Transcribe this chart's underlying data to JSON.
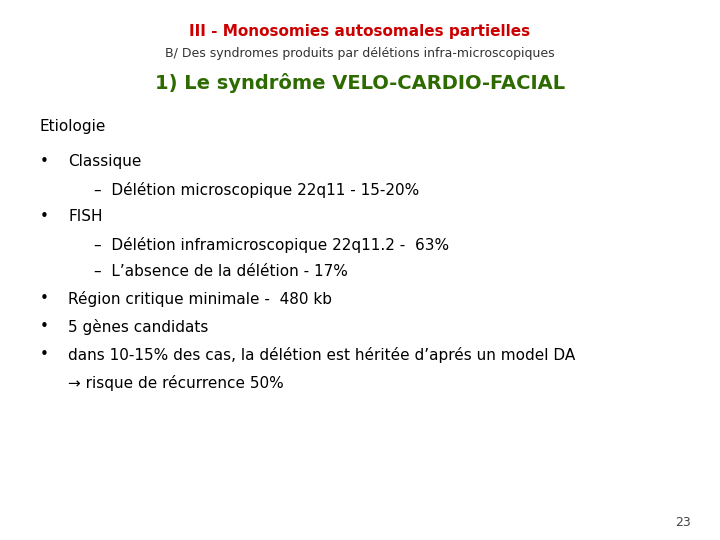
{
  "title_line1": "III - Monosomies autosomales partielles",
  "title_line2": "B/ Des syndromes produits par délétions infra-microscopiques",
  "title_line3": "1) Le syndrôme VELO-CARDIO-FACIAL",
  "title_line1_color": "#cc0000",
  "title_line2_color": "#333333",
  "title_line3_color": "#2d6a00",
  "section_header": "Etiologie",
  "section_header_color": "#000000",
  "bullet_items": [
    {
      "level": 1,
      "text": "Classique"
    },
    {
      "level": 2,
      "text": "–  Délétion microscopique 22q11 - 15-20%"
    },
    {
      "level": 1,
      "text": "FISH"
    },
    {
      "level": 2,
      "text": "–  Délétion inframicroscopique 22q11.2 -  63%"
    },
    {
      "level": 2,
      "text": "–  L’absence de la délétion - 17%"
    },
    {
      "level": 1,
      "text": "Région critique minimale -  480 kb"
    },
    {
      "level": 1,
      "text": "5 gènes candidats"
    },
    {
      "level": 1,
      "text": "dans 10-15% des cas, la délétion est héritée d’aprés un model DA"
    },
    {
      "level": 3,
      "text": "→ risque de récurrence 50%"
    }
  ],
  "bullet_color": "#000000",
  "page_number": "23",
  "background_color": "#ffffff",
  "title_line1_fontsize": 11,
  "title_line2_fontsize": 9,
  "title_line3_fontsize": 14,
  "section_header_fontsize": 11,
  "body_fontsize": 11
}
